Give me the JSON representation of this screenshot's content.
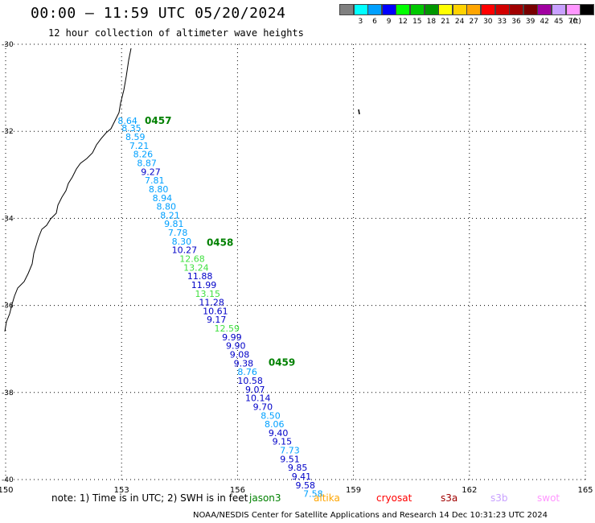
{
  "title": "00:00 – 11:59 UTC 05/20/2024",
  "subtitle": "12 hour collection of altimeter wave heights",
  "colorbar": {
    "unit": "(ft)",
    "bins": [
      {
        "label": "",
        "color": "#808080"
      },
      {
        "label": "3",
        "color": "#00ffff"
      },
      {
        "label": "6",
        "color": "#00a0ff"
      },
      {
        "label": "9",
        "color": "#0000ff"
      },
      {
        "label": "12",
        "color": "#00ff00"
      },
      {
        "label": "15",
        "color": "#00c800"
      },
      {
        "label": "18",
        "color": "#009600"
      },
      {
        "label": "21",
        "color": "#ffff00"
      },
      {
        "label": "24",
        "color": "#ffd200"
      },
      {
        "label": "27",
        "color": "#ffa500"
      },
      {
        "label": "30",
        "color": "#ff0000"
      },
      {
        "label": "33",
        "color": "#d20000"
      },
      {
        "label": "36",
        "color": "#a00000"
      },
      {
        "label": "39",
        "color": "#780000"
      },
      {
        "label": "42",
        "color": "#a000a0"
      },
      {
        "label": "45",
        "color": "#c8a0ff"
      },
      {
        "label": "70",
        "color": "#ff96ff"
      },
      {
        "label": "",
        "color": "#000000"
      }
    ]
  },
  "map": {
    "lon_ticks": [
      "150",
      "153",
      "156",
      "159",
      "162",
      "165"
    ],
    "lat_ticks": [
      "-30",
      "-32",
      "-34",
      "-36",
      "-38",
      "-40"
    ],
    "lon_range": [
      150,
      165
    ],
    "lat_range": [
      -30,
      -40
    ],
    "times": [
      {
        "label": "0457",
        "lon": 153.6,
        "lat": -31.83
      },
      {
        "label": "0458",
        "lon": 155.2,
        "lat": -34.63
      },
      {
        "label": "0459",
        "lon": 156.8,
        "lat": -37.38
      }
    ],
    "observations": [
      {
        "v": "8.64",
        "lon": 152.9,
        "lat": -31.83,
        "c": "#00a0ff"
      },
      {
        "v": "8.35",
        "lon": 153.0,
        "lat": -32.0,
        "c": "#00a0ff"
      },
      {
        "v": "8.59",
        "lon": 153.1,
        "lat": -32.2,
        "c": "#00a0ff"
      },
      {
        "v": "7.21",
        "lon": 153.2,
        "lat": -32.4,
        "c": "#00a0ff"
      },
      {
        "v": "8.26",
        "lon": 153.3,
        "lat": -32.6,
        "c": "#00a0ff"
      },
      {
        "v": "8.87",
        "lon": 153.4,
        "lat": -32.8,
        "c": "#00a0ff"
      },
      {
        "v": "9.27",
        "lon": 153.5,
        "lat": -33.0,
        "c": "#0000c8"
      },
      {
        "v": "7.81",
        "lon": 153.6,
        "lat": -33.2,
        "c": "#00a0ff"
      },
      {
        "v": "8.80",
        "lon": 153.7,
        "lat": -33.4,
        "c": "#00a0ff"
      },
      {
        "v": "8.94",
        "lon": 153.8,
        "lat": -33.6,
        "c": "#00a0ff"
      },
      {
        "v": "8.80",
        "lon": 153.9,
        "lat": -33.8,
        "c": "#00a0ff"
      },
      {
        "v": "8.21",
        "lon": 154.0,
        "lat": -34.0,
        "c": "#00a0ff"
      },
      {
        "v": "9.81",
        "lon": 154.1,
        "lat": -34.2,
        "c": "#00a0ff"
      },
      {
        "v": "7.78",
        "lon": 154.2,
        "lat": -34.4,
        "c": "#00a0ff"
      },
      {
        "v": "8.30",
        "lon": 154.3,
        "lat": -34.6,
        "c": "#00a0ff"
      },
      {
        "v": "10.27",
        "lon": 154.3,
        "lat": -34.8,
        "c": "#0000c8"
      },
      {
        "v": "12.68",
        "lon": 154.5,
        "lat": -35.0,
        "c": "#40e040"
      },
      {
        "v": "13.24",
        "lon": 154.6,
        "lat": -35.2,
        "c": "#40e040"
      },
      {
        "v": "11.88",
        "lon": 154.7,
        "lat": -35.4,
        "c": "#0000c8"
      },
      {
        "v": "11.99",
        "lon": 154.8,
        "lat": -35.6,
        "c": "#0000c8"
      },
      {
        "v": "13.15",
        "lon": 154.9,
        "lat": -35.8,
        "c": "#40e040"
      },
      {
        "v": "11.28",
        "lon": 155.0,
        "lat": -36.0,
        "c": "#0000c8"
      },
      {
        "v": "10.61",
        "lon": 155.1,
        "lat": -36.2,
        "c": "#0000c8"
      },
      {
        "v": "9.17",
        "lon": 155.2,
        "lat": -36.4,
        "c": "#0000c8"
      },
      {
        "v": "12.59",
        "lon": 155.4,
        "lat": -36.6,
        "c": "#40e040"
      },
      {
        "v": "9.99",
        "lon": 155.6,
        "lat": -36.8,
        "c": "#0000c8"
      },
      {
        "v": "9.90",
        "lon": 155.7,
        "lat": -37.0,
        "c": "#0000c8"
      },
      {
        "v": "9.08",
        "lon": 155.8,
        "lat": -37.2,
        "c": "#0000c8"
      },
      {
        "v": "9.38",
        "lon": 155.9,
        "lat": -37.4,
        "c": "#0000c8"
      },
      {
        "v": "8.76",
        "lon": 156.0,
        "lat": -37.6,
        "c": "#00a0ff"
      },
      {
        "v": "10.58",
        "lon": 156.0,
        "lat": -37.8,
        "c": "#0000c8"
      },
      {
        "v": "9.07",
        "lon": 156.2,
        "lat": -38.0,
        "c": "#0000c8"
      },
      {
        "v": "10.14",
        "lon": 156.2,
        "lat": -38.2,
        "c": "#0000c8"
      },
      {
        "v": "9.70",
        "lon": 156.4,
        "lat": -38.4,
        "c": "#0000c8"
      },
      {
        "v": "8.50",
        "lon": 156.6,
        "lat": -38.6,
        "c": "#00a0ff"
      },
      {
        "v": "8.06",
        "lon": 156.7,
        "lat": -38.8,
        "c": "#00a0ff"
      },
      {
        "v": "9.40",
        "lon": 156.8,
        "lat": -39.0,
        "c": "#0000c8"
      },
      {
        "v": "9.15",
        "lon": 156.9,
        "lat": -39.2,
        "c": "#0000c8"
      },
      {
        "v": "7.73",
        "lon": 157.1,
        "lat": -39.4,
        "c": "#00a0ff"
      },
      {
        "v": "9.51",
        "lon": 157.1,
        "lat": -39.6,
        "c": "#0000c8"
      },
      {
        "v": "9.85",
        "lon": 157.3,
        "lat": -39.8,
        "c": "#0000c8"
      },
      {
        "v": "9.41",
        "lon": 157.4,
        "lat": -40.0,
        "c": "#0000c8"
      },
      {
        "v": "9.58",
        "lon": 157.5,
        "lat": -40.2,
        "c": "#0000c8"
      },
      {
        "v": "7.58",
        "lon": 157.7,
        "lat": -40.4,
        "c": "#00a0ff"
      }
    ]
  },
  "note": "note: 1) Time is in UTC; 2) SWH is in feet",
  "satellites": [
    {
      "name": "jason3",
      "color": "#008000"
    },
    {
      "name": "altika",
      "color": "#ffa500"
    },
    {
      "name": "cryosat",
      "color": "#ff0000"
    },
    {
      "name": "s3a",
      "color": "#a00000"
    },
    {
      "name": "s3b",
      "color": "#c8a0ff"
    },
    {
      "name": "swot",
      "color": "#ff96ff"
    }
  ],
  "footer": "NOAA/NESDIS Center for Satellite Applications and Research    14 Dec 10:31:23 UTC 2024"
}
